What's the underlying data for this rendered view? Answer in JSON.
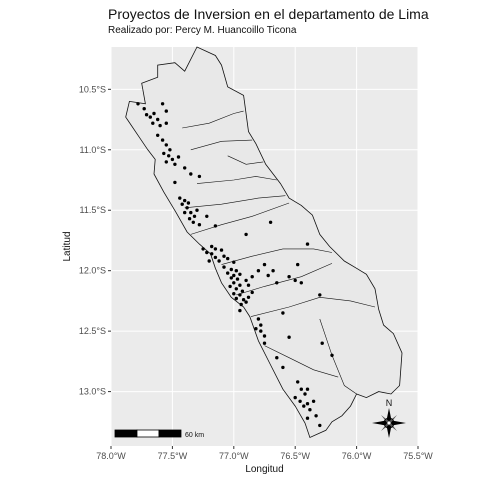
{
  "title": "Proyectos de Inversion en el departamento de Lima",
  "subtitle": "Realizado por: Percy M. Huancoillo Ticona",
  "colors": {
    "panel_bg": "#ebebeb",
    "grid": "#ffffff",
    "region_fill": "#e8e8e8",
    "region_stroke": "#111111",
    "point": "#000000"
  },
  "chart_data": {
    "type": "scatter",
    "title": "Proyectos de Inversion en el departamento de Lima",
    "subtitle": "Realizado por: Percy M. Huancoillo Ticona",
    "xlabel": "Longitud",
    "ylabel": "Latitud",
    "xlim": [
      -78.0,
      -75.5
    ],
    "ylim": [
      -13.45,
      -10.15
    ],
    "x_ticks": [
      -78.0,
      -77.5,
      -77.0,
      -76.5,
      -76.0,
      -75.5
    ],
    "x_tick_labels": [
      "78.0°W",
      "77.5°W",
      "77.0°W",
      "76.5°W",
      "76.0°W",
      "75.5°W"
    ],
    "y_ticks": [
      -10.5,
      -11.0,
      -11.5,
      -12.0,
      -12.5,
      -13.0
    ],
    "y_tick_labels": [
      "10.5°S",
      "11.0°S",
      "11.5°S",
      "12.0°S",
      "12.5°S",
      "13.0°S"
    ],
    "grid": true,
    "region_outline": [
      [
        -77.85,
        -10.6
      ],
      [
        -77.72,
        -10.62
      ],
      [
        -77.75,
        -10.45
      ],
      [
        -77.62,
        -10.4
      ],
      [
        -77.62,
        -10.3
      ],
      [
        -77.48,
        -10.28
      ],
      [
        -77.4,
        -10.35
      ],
      [
        -77.3,
        -10.15
      ],
      [
        -77.15,
        -10.22
      ],
      [
        -77.1,
        -10.3
      ],
      [
        -77.05,
        -10.48
      ],
      [
        -76.92,
        -10.55
      ],
      [
        -76.88,
        -10.85
      ],
      [
        -76.82,
        -10.95
      ],
      [
        -76.74,
        -11.12
      ],
      [
        -76.62,
        -11.28
      ],
      [
        -76.55,
        -11.4
      ],
      [
        -76.45,
        -11.46
      ],
      [
        -76.36,
        -11.54
      ],
      [
        -76.3,
        -11.7
      ],
      [
        -76.22,
        -11.8
      ],
      [
        -76.1,
        -11.92
      ],
      [
        -76.0,
        -11.98
      ],
      [
        -75.92,
        -12.03
      ],
      [
        -75.85,
        -12.15
      ],
      [
        -75.82,
        -12.32
      ],
      [
        -75.78,
        -12.45
      ],
      [
        -75.7,
        -12.52
      ],
      [
        -75.63,
        -12.68
      ],
      [
        -75.65,
        -12.95
      ],
      [
        -75.72,
        -13.02
      ],
      [
        -75.82,
        -13.0
      ],
      [
        -75.92,
        -13.05
      ],
      [
        -76.0,
        -13.02
      ],
      [
        -76.05,
        -13.12
      ],
      [
        -76.12,
        -13.2
      ],
      [
        -76.2,
        -13.25
      ],
      [
        -76.25,
        -13.32
      ],
      [
        -76.38,
        -13.38
      ],
      [
        -76.42,
        -13.26
      ],
      [
        -76.5,
        -13.12
      ],
      [
        -76.6,
        -12.98
      ],
      [
        -76.7,
        -12.78
      ],
      [
        -76.8,
        -12.58
      ],
      [
        -76.87,
        -12.38
      ],
      [
        -76.92,
        -12.3
      ],
      [
        -77.02,
        -12.22
      ],
      [
        -77.1,
        -12.1
      ],
      [
        -77.15,
        -11.98
      ],
      [
        -77.19,
        -11.86
      ],
      [
        -77.28,
        -11.78
      ],
      [
        -77.38,
        -11.68
      ],
      [
        -77.47,
        -11.52
      ],
      [
        -77.57,
        -11.35
      ],
      [
        -77.65,
        -11.2
      ],
      [
        -77.64,
        -11.08
      ],
      [
        -77.7,
        -11.0
      ],
      [
        -77.78,
        -10.88
      ],
      [
        -77.88,
        -10.73
      ],
      [
        -77.85,
        -10.6
      ]
    ],
    "internal_boundaries": [
      [
        [
          -77.42,
          -10.82
        ],
        [
          -77.2,
          -10.78
        ],
        [
          -77.0,
          -10.7
        ],
        [
          -76.92,
          -10.68
        ]
      ],
      [
        [
          -77.35,
          -11.0
        ],
        [
          -77.1,
          -10.93
        ],
        [
          -76.85,
          -10.92
        ]
      ],
      [
        [
          -77.05,
          -11.05
        ],
        [
          -76.9,
          -11.12
        ],
        [
          -76.76,
          -11.1
        ]
      ],
      [
        [
          -77.3,
          -11.28
        ],
        [
          -77.0,
          -11.25
        ],
        [
          -76.82,
          -11.22
        ],
        [
          -76.65,
          -11.25
        ]
      ],
      [
        [
          -77.4,
          -11.48
        ],
        [
          -77.1,
          -11.45
        ],
        [
          -76.8,
          -11.4
        ],
        [
          -76.58,
          -11.38
        ]
      ],
      [
        [
          -77.35,
          -11.7
        ],
        [
          -77.1,
          -11.62
        ],
        [
          -76.85,
          -11.55
        ],
        [
          -76.55,
          -11.44
        ]
      ],
      [
        [
          -77.1,
          -11.95
        ],
        [
          -76.85,
          -11.88
        ],
        [
          -76.6,
          -11.82
        ],
        [
          -76.35,
          -11.82
        ],
        [
          -76.2,
          -11.85
        ]
      ],
      [
        [
          -76.98,
          -12.2
        ],
        [
          -76.75,
          -12.13
        ],
        [
          -76.45,
          -12.05
        ],
        [
          -76.2,
          -11.94
        ]
      ],
      [
        [
          -76.86,
          -12.38
        ],
        [
          -76.55,
          -12.3
        ],
        [
          -76.3,
          -12.22
        ],
        [
          -76.05,
          -12.25
        ],
        [
          -75.85,
          -12.3
        ]
      ],
      [
        [
          -76.3,
          -12.4
        ],
        [
          -76.2,
          -12.7
        ],
        [
          -76.1,
          -12.95
        ],
        [
          -76.0,
          -13.02
        ]
      ],
      [
        [
          -76.75,
          -12.62
        ],
        [
          -76.55,
          -12.72
        ],
        [
          -76.35,
          -12.82
        ],
        [
          -76.15,
          -12.88
        ]
      ]
    ],
    "points": [
      [
        -77.78,
        -10.62
      ],
      [
        -77.73,
        -10.66
      ],
      [
        -77.71,
        -10.71
      ],
      [
        -77.68,
        -10.73
      ],
      [
        -77.65,
        -10.7
      ],
      [
        -77.62,
        -10.75
      ],
      [
        -77.58,
        -10.62
      ],
      [
        -77.55,
        -10.68
      ],
      [
        -77.6,
        -10.8
      ],
      [
        -77.55,
        -10.78
      ],
      [
        -77.66,
        -10.78
      ],
      [
        -77.62,
        -10.88
      ],
      [
        -77.58,
        -10.92
      ],
      [
        -77.55,
        -10.96
      ],
      [
        -77.52,
        -11.0
      ],
      [
        -77.57,
        -11.03
      ],
      [
        -77.53,
        -11.05
      ],
      [
        -77.5,
        -11.08
      ],
      [
        -77.55,
        -11.1
      ],
      [
        -77.48,
        -11.12
      ],
      [
        -77.45,
        -11.06
      ],
      [
        -77.4,
        -11.15
      ],
      [
        -77.35,
        -11.2
      ],
      [
        -77.28,
        -11.22
      ],
      [
        -77.48,
        -11.27
      ],
      [
        -77.44,
        -11.4
      ],
      [
        -77.4,
        -11.42
      ],
      [
        -77.42,
        -11.45
      ],
      [
        -77.38,
        -11.48
      ],
      [
        -77.35,
        -11.52
      ],
      [
        -77.32,
        -11.55
      ],
      [
        -77.36,
        -11.57
      ],
      [
        -77.33,
        -11.6
      ],
      [
        -77.4,
        -11.52
      ],
      [
        -77.37,
        -11.44
      ],
      [
        -77.3,
        -11.5
      ],
      [
        -77.28,
        -11.62
      ],
      [
        -77.22,
        -11.55
      ],
      [
        -77.15,
        -11.63
      ],
      [
        -77.25,
        -11.82
      ],
      [
        -77.22,
        -11.85
      ],
      [
        -77.18,
        -11.86
      ],
      [
        -77.15,
        -11.89
      ],
      [
        -77.2,
        -11.92
      ],
      [
        -77.12,
        -11.92
      ],
      [
        -77.08,
        -11.88
      ],
      [
        -77.15,
        -11.82
      ],
      [
        -77.18,
        -11.8
      ],
      [
        -77.1,
        -11.83
      ],
      [
        -77.05,
        -11.9
      ],
      [
        -77.0,
        -11.93
      ],
      [
        -77.08,
        -11.97
      ],
      [
        -77.02,
        -11.99
      ],
      [
        -76.98,
        -12.0
      ],
      [
        -77.05,
        -12.02
      ],
      [
        -77.0,
        -12.04
      ],
      [
        -76.95,
        -12.03
      ],
      [
        -77.02,
        -12.06
      ],
      [
        -76.97,
        -12.07
      ],
      [
        -77.0,
        -12.1
      ],
      [
        -76.95,
        -12.12
      ],
      [
        -76.98,
        -12.15
      ],
      [
        -76.93,
        -12.17
      ],
      [
        -77.03,
        -12.13
      ],
      [
        -77.0,
        -12.19
      ],
      [
        -76.95,
        -12.2
      ],
      [
        -76.98,
        -12.23
      ],
      [
        -76.92,
        -12.24
      ],
      [
        -76.9,
        -12.26
      ],
      [
        -76.94,
        -12.28
      ],
      [
        -76.88,
        -12.22
      ],
      [
        -76.85,
        -12.18
      ],
      [
        -76.88,
        -12.12
      ],
      [
        -76.9,
        -12.08
      ],
      [
        -76.85,
        -12.05
      ],
      [
        -76.8,
        -12.0
      ],
      [
        -76.75,
        -11.95
      ],
      [
        -76.72,
        -12.04
      ],
      [
        -76.65,
        -12.1
      ],
      [
        -76.68,
        -12.0
      ],
      [
        -76.55,
        -12.05
      ],
      [
        -76.5,
        -12.08
      ],
      [
        -76.8,
        -12.4
      ],
      [
        -76.78,
        -12.45
      ],
      [
        -76.82,
        -12.48
      ],
      [
        -76.78,
        -12.5
      ],
      [
        -76.75,
        -12.54
      ],
      [
        -76.6,
        -12.35
      ],
      [
        -76.95,
        -12.33
      ],
      [
        -76.9,
        -11.7
      ],
      [
        -76.7,
        -11.6
      ],
      [
        -76.4,
        -11.78
      ],
      [
        -76.48,
        -11.95
      ],
      [
        -76.45,
        -12.1
      ],
      [
        -76.3,
        -12.2
      ],
      [
        -76.28,
        -12.6
      ],
      [
        -76.55,
        -12.55
      ],
      [
        -76.65,
        -12.72
      ],
      [
        -76.6,
        -12.8
      ],
      [
        -76.75,
        -12.6
      ],
      [
        -76.48,
        -12.92
      ],
      [
        -76.45,
        -12.98
      ],
      [
        -76.42,
        -13.02
      ],
      [
        -76.5,
        -13.05
      ],
      [
        -76.46,
        -13.08
      ],
      [
        -76.4,
        -13.1
      ],
      [
        -76.43,
        -13.12
      ],
      [
        -76.38,
        -13.15
      ],
      [
        -76.35,
        -13.08
      ],
      [
        -76.4,
        -12.98
      ],
      [
        -76.33,
        -13.2
      ],
      [
        -76.3,
        -13.28
      ],
      [
        -76.4,
        -13.22
      ],
      [
        -76.2,
        -12.7
      ]
    ],
    "scale_bar": {
      "label": "60 km"
    },
    "north_arrow": {
      "label": "N"
    }
  }
}
